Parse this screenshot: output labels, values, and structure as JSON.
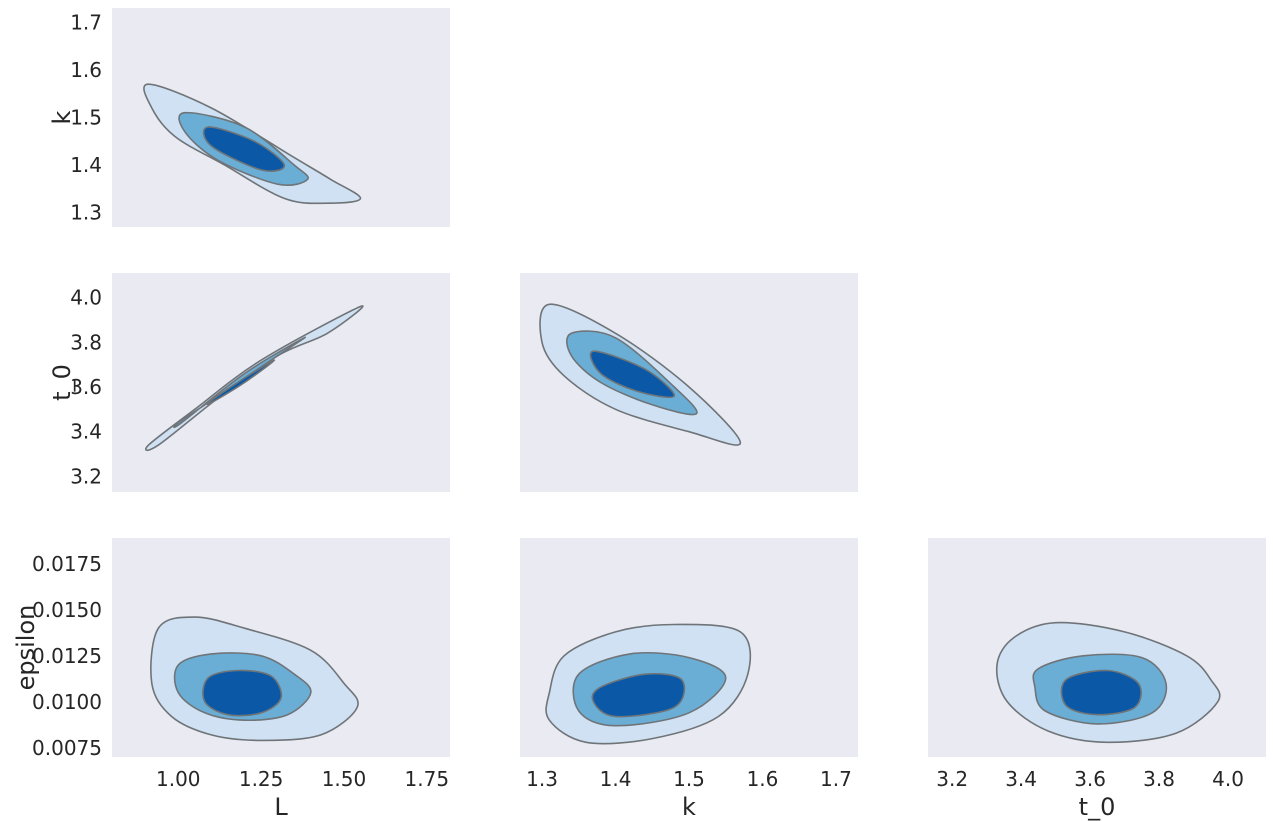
{
  "colors": {
    "panel_bg": "#EAEAF2",
    "contour_outer": "#CFE1F2",
    "contour_mid": "#6AAED6",
    "contour_inner": "#0B59A6",
    "contour_line": "#6F7478"
  },
  "chart_data": {
    "type": "pair-kde-contour",
    "grid": false,
    "variables": [
      "L",
      "k",
      "t_0",
      "epsilon"
    ],
    "axis_ranges": {
      "L": [
        0.8,
        1.82
      ],
      "k": [
        1.27,
        1.73
      ],
      "t_0": [
        3.13,
        4.11
      ],
      "epsilon": [
        0.007,
        0.0189
      ]
    },
    "ticks": {
      "L": [
        "1.00",
        "1.25",
        "1.50",
        "1.75"
      ],
      "k": [
        "1.3",
        "1.4",
        "1.5",
        "1.6",
        "1.7"
      ],
      "t_0_x": [
        "3.2",
        "3.4",
        "3.6",
        "3.8",
        "4.0"
      ],
      "t_0_y": [
        "3.2",
        "3.4",
        "3.6",
        "3.8",
        "4.0"
      ],
      "epsilon": [
        "0.0075",
        "0.0100",
        "0.0125",
        "0.0150",
        "0.0175"
      ]
    },
    "panels": [
      {
        "x": "L",
        "y": "k",
        "contours": [
          {
            "level": "outer",
            "points": [
              [
                0.91,
                1.57
              ],
              [
                1.1,
                1.52
              ],
              [
                1.34,
                1.42
              ],
              [
                1.46,
                1.37
              ],
              [
                1.55,
                1.33
              ],
              [
                1.45,
                1.32
              ],
              [
                1.32,
                1.33
              ],
              [
                1.14,
                1.4
              ],
              [
                0.99,
                1.46
              ],
              [
                0.92,
                1.52
              ]
            ]
          },
          {
            "level": "mid",
            "points": [
              [
                1.02,
                1.51
              ],
              [
                1.2,
                1.48
              ],
              [
                1.35,
                1.4
              ],
              [
                1.39,
                1.37
              ],
              [
                1.3,
                1.36
              ],
              [
                1.12,
                1.41
              ],
              [
                1.02,
                1.47
              ]
            ]
          },
          {
            "level": "inner",
            "points": [
              [
                1.09,
                1.48
              ],
              [
                1.23,
                1.45
              ],
              [
                1.32,
                1.4
              ],
              [
                1.25,
                1.39
              ],
              [
                1.1,
                1.44
              ]
            ]
          }
        ]
      },
      {
        "x": "L",
        "y": "t_0",
        "contours": [
          {
            "level": "outer",
            "points": [
              [
                0.91,
                3.34
              ],
              [
                1.05,
                3.5
              ],
              [
                1.25,
                3.72
              ],
              [
                1.55,
                3.96
              ],
              [
                1.45,
                3.84
              ],
              [
                1.3,
                3.74
              ],
              [
                1.12,
                3.55
              ],
              [
                0.94,
                3.34
              ]
            ]
          },
          {
            "level": "mid",
            "points": [
              [
                1.01,
                3.44
              ],
              [
                1.2,
                3.66
              ],
              [
                1.38,
                3.82
              ],
              [
                1.3,
                3.74
              ],
              [
                1.1,
                3.54
              ],
              [
                1.0,
                3.44
              ]
            ]
          },
          {
            "level": "inner",
            "points": [
              [
                1.1,
                3.54
              ],
              [
                1.2,
                3.64
              ],
              [
                1.29,
                3.72
              ],
              [
                1.2,
                3.62
              ],
              [
                1.1,
                3.53
              ]
            ]
          }
        ]
      },
      {
        "x": "k",
        "y": "t_0",
        "contours": [
          {
            "level": "outer",
            "points": [
              [
                1.31,
                3.97
              ],
              [
                1.4,
                3.84
              ],
              [
                1.5,
                3.6
              ],
              [
                1.57,
                3.35
              ],
              [
                1.5,
                3.4
              ],
              [
                1.4,
                3.5
              ],
              [
                1.33,
                3.65
              ],
              [
                1.3,
                3.8
              ]
            ]
          },
          {
            "level": "mid",
            "points": [
              [
                1.34,
                3.84
              ],
              [
                1.4,
                3.82
              ],
              [
                1.48,
                3.6
              ],
              [
                1.51,
                3.48
              ],
              [
                1.45,
                3.52
              ],
              [
                1.38,
                3.62
              ],
              [
                1.34,
                3.74
              ]
            ]
          },
          {
            "level": "inner",
            "points": [
              [
                1.37,
                3.76
              ],
              [
                1.44,
                3.68
              ],
              [
                1.48,
                3.56
              ],
              [
                1.43,
                3.58
              ],
              [
                1.38,
                3.66
              ]
            ]
          }
        ]
      },
      {
        "x": "L",
        "y": "epsilon",
        "contours": [
          {
            "level": "outer",
            "points": [
              [
                0.94,
                0.014
              ],
              [
                1.05,
                0.0146
              ],
              [
                1.2,
                0.014
              ],
              [
                1.4,
                0.0128
              ],
              [
                1.5,
                0.011
              ],
              [
                1.54,
                0.0097
              ],
              [
                1.43,
                0.0082
              ],
              [
                1.25,
                0.0079
              ],
              [
                1.1,
                0.0082
              ],
              [
                0.98,
                0.0092
              ],
              [
                0.92,
                0.011
              ]
            ]
          },
          {
            "level": "mid",
            "points": [
              [
                1.0,
                0.012
              ],
              [
                1.1,
                0.0126
              ],
              [
                1.25,
                0.0125
              ],
              [
                1.35,
                0.0115
              ],
              [
                1.4,
                0.0105
              ],
              [
                1.33,
                0.0093
              ],
              [
                1.2,
                0.009
              ],
              [
                1.08,
                0.0094
              ],
              [
                1.0,
                0.0105
              ]
            ]
          },
          {
            "level": "inner",
            "points": [
              [
                1.09,
                0.0113
              ],
              [
                1.18,
                0.0117
              ],
              [
                1.28,
                0.0114
              ],
              [
                1.31,
                0.0102
              ],
              [
                1.25,
                0.0094
              ],
              [
                1.15,
                0.0093
              ],
              [
                1.08,
                0.01
              ]
            ]
          }
        ]
      },
      {
        "x": "k",
        "y": "epsilon",
        "contours": [
          {
            "level": "outer",
            "points": [
              [
                1.33,
                0.0125
              ],
              [
                1.4,
                0.0138
              ],
              [
                1.48,
                0.0142
              ],
              [
                1.57,
                0.0138
              ],
              [
                1.58,
                0.0115
              ],
              [
                1.54,
                0.0092
              ],
              [
                1.45,
                0.008
              ],
              [
                1.36,
                0.0078
              ],
              [
                1.31,
                0.009
              ],
              [
                1.31,
                0.0105
              ]
            ]
          },
          {
            "level": "mid",
            "points": [
              [
                1.35,
                0.0115
              ],
              [
                1.42,
                0.0126
              ],
              [
                1.5,
                0.0124
              ],
              [
                1.55,
                0.0113
              ],
              [
                1.5,
                0.0094
              ],
              [
                1.4,
                0.0087
              ],
              [
                1.35,
                0.0095
              ]
            ]
          },
          {
            "level": "inner",
            "points": [
              [
                1.38,
                0.0108
              ],
              [
                1.44,
                0.0115
              ],
              [
                1.49,
                0.0112
              ],
              [
                1.48,
                0.0097
              ],
              [
                1.4,
                0.0092
              ],
              [
                1.37,
                0.01
              ]
            ]
          }
        ]
      },
      {
        "x": "t_0",
        "y": "epsilon",
        "contours": [
          {
            "level": "outer",
            "points": [
              [
                3.38,
                0.0135
              ],
              [
                3.5,
                0.0143
              ],
              [
                3.7,
                0.0138
              ],
              [
                3.88,
                0.0125
              ],
              [
                3.95,
                0.0112
              ],
              [
                3.97,
                0.01
              ],
              [
                3.85,
                0.0083
              ],
              [
                3.65,
                0.0078
              ],
              [
                3.48,
                0.0084
              ],
              [
                3.36,
                0.01
              ],
              [
                3.33,
                0.012
              ]
            ]
          },
          {
            "level": "mid",
            "points": [
              [
                3.45,
                0.0118
              ],
              [
                3.58,
                0.0125
              ],
              [
                3.75,
                0.0124
              ],
              [
                3.82,
                0.011
              ],
              [
                3.78,
                0.0094
              ],
              [
                3.62,
                0.0088
              ],
              [
                3.47,
                0.0095
              ],
              [
                3.44,
                0.0108
              ]
            ]
          },
          {
            "level": "inner",
            "points": [
              [
                3.53,
                0.0112
              ],
              [
                3.65,
                0.0117
              ],
              [
                3.74,
                0.011
              ],
              [
                3.73,
                0.0097
              ],
              [
                3.62,
                0.0093
              ],
              [
                3.53,
                0.0098
              ]
            ]
          }
        ]
      }
    ]
  }
}
